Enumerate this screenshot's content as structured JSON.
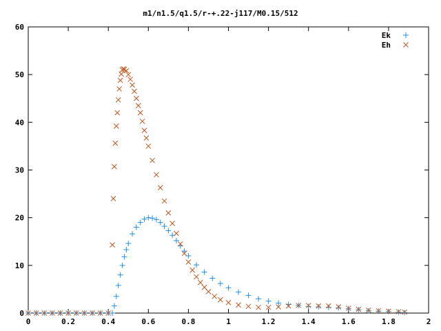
{
  "chart_data": {
    "type": "scatter",
    "title": "m1/n1.5/q1.5/r-+.22-j117/M0.15/512",
    "xlabel": "",
    "ylabel": "",
    "xlim": [
      0,
      2
    ],
    "ylim": [
      0,
      60
    ],
    "x_ticks": [
      "0",
      "0.2",
      "0.4",
      "0.6",
      "0.8",
      "1",
      "1.2",
      "1.4",
      "1.6",
      "1.8",
      "2"
    ],
    "y_ticks": [
      "0",
      "10",
      "20",
      "30",
      "40",
      "50",
      "60"
    ],
    "grid": false,
    "legend_position": "top-right",
    "series": [
      {
        "name": "Ek",
        "marker": "plus",
        "color": "#1f8fe8",
        "points": [
          [
            0.0,
            0
          ],
          [
            0.04,
            0
          ],
          [
            0.08,
            0
          ],
          [
            0.12,
            0
          ],
          [
            0.16,
            0
          ],
          [
            0.2,
            0
          ],
          [
            0.24,
            0
          ],
          [
            0.28,
            0
          ],
          [
            0.32,
            0
          ],
          [
            0.36,
            0
          ],
          [
            0.4,
            0
          ],
          [
            0.42,
            0
          ],
          [
            0.43,
            1.5
          ],
          [
            0.44,
            3.5
          ],
          [
            0.45,
            5.8
          ],
          [
            0.46,
            8.0
          ],
          [
            0.47,
            10.0
          ],
          [
            0.48,
            11.8
          ],
          [
            0.49,
            13.3
          ],
          [
            0.5,
            14.6
          ],
          [
            0.52,
            16.6
          ],
          [
            0.54,
            18.0
          ],
          [
            0.56,
            19.0
          ],
          [
            0.58,
            19.7
          ],
          [
            0.6,
            20.0
          ],
          [
            0.62,
            19.9
          ],
          [
            0.64,
            19.6
          ],
          [
            0.66,
            19.0
          ],
          [
            0.68,
            18.2
          ],
          [
            0.7,
            17.3
          ],
          [
            0.72,
            16.3
          ],
          [
            0.74,
            15.2
          ],
          [
            0.76,
            14.1
          ],
          [
            0.78,
            13.0
          ],
          [
            0.8,
            12.0
          ],
          [
            0.84,
            10.1
          ],
          [
            0.88,
            8.6
          ],
          [
            0.92,
            7.3
          ],
          [
            0.96,
            6.2
          ],
          [
            1.0,
            5.3
          ],
          [
            1.05,
            4.4
          ],
          [
            1.1,
            3.7
          ],
          [
            1.15,
            3.0
          ],
          [
            1.2,
            2.5
          ],
          [
            1.25,
            2.1
          ],
          [
            1.3,
            1.8
          ],
          [
            1.35,
            1.6
          ],
          [
            1.4,
            1.4
          ],
          [
            1.45,
            1.3
          ],
          [
            1.5,
            1.2
          ],
          [
            1.55,
            1.1
          ],
          [
            1.6,
            0.9
          ],
          [
            1.65,
            0.7
          ],
          [
            1.7,
            0.5
          ],
          [
            1.75,
            0.4
          ],
          [
            1.8,
            0.3
          ],
          [
            1.85,
            0.2
          ],
          [
            1.88,
            0.1
          ]
        ]
      },
      {
        "name": "Eh",
        "marker": "cross",
        "color": "#c0541a",
        "points": [
          [
            0.0,
            0
          ],
          [
            0.04,
            0
          ],
          [
            0.08,
            0
          ],
          [
            0.12,
            0
          ],
          [
            0.16,
            0
          ],
          [
            0.2,
            0
          ],
          [
            0.24,
            0
          ],
          [
            0.28,
            0
          ],
          [
            0.32,
            0
          ],
          [
            0.36,
            0
          ],
          [
            0.4,
            0
          ],
          [
            0.42,
            14.3
          ],
          [
            0.425,
            24.0
          ],
          [
            0.43,
            30.7
          ],
          [
            0.435,
            35.6
          ],
          [
            0.44,
            39.2
          ],
          [
            0.445,
            42.0
          ],
          [
            0.45,
            44.7
          ],
          [
            0.455,
            47.0
          ],
          [
            0.46,
            48.8
          ],
          [
            0.465,
            50.1
          ],
          [
            0.47,
            51.0
          ],
          [
            0.475,
            51.2
          ],
          [
            0.48,
            51.1
          ],
          [
            0.49,
            50.8
          ],
          [
            0.5,
            50.0
          ],
          [
            0.51,
            49.0
          ],
          [
            0.52,
            47.8
          ],
          [
            0.53,
            46.5
          ],
          [
            0.54,
            45.0
          ],
          [
            0.55,
            43.5
          ],
          [
            0.56,
            42.0
          ],
          [
            0.57,
            40.2
          ],
          [
            0.58,
            38.3
          ],
          [
            0.59,
            36.7
          ],
          [
            0.6,
            35.0
          ],
          [
            0.62,
            32.0
          ],
          [
            0.64,
            29.0
          ],
          [
            0.66,
            26.3
          ],
          [
            0.68,
            23.5
          ],
          [
            0.7,
            21.0
          ],
          [
            0.72,
            18.8
          ],
          [
            0.74,
            16.7
          ],
          [
            0.76,
            14.5
          ],
          [
            0.78,
            12.5
          ],
          [
            0.8,
            10.7
          ],
          [
            0.82,
            9.0
          ],
          [
            0.84,
            7.6
          ],
          [
            0.86,
            6.4
          ],
          [
            0.88,
            5.4
          ],
          [
            0.9,
            4.5
          ],
          [
            0.93,
            3.5
          ],
          [
            0.96,
            2.8
          ],
          [
            1.0,
            2.2
          ],
          [
            1.05,
            1.7
          ],
          [
            1.1,
            1.4
          ],
          [
            1.15,
            1.2
          ],
          [
            1.2,
            1.2
          ],
          [
            1.25,
            1.3
          ],
          [
            1.3,
            1.5
          ],
          [
            1.35,
            1.6
          ],
          [
            1.4,
            1.6
          ],
          [
            1.45,
            1.5
          ],
          [
            1.5,
            1.5
          ],
          [
            1.55,
            1.3
          ],
          [
            1.6,
            1.0
          ],
          [
            1.65,
            0.8
          ],
          [
            1.7,
            0.6
          ],
          [
            1.75,
            0.5
          ],
          [
            1.8,
            0.4
          ],
          [
            1.85,
            0.3
          ],
          [
            1.88,
            0.2
          ]
        ]
      }
    ]
  }
}
